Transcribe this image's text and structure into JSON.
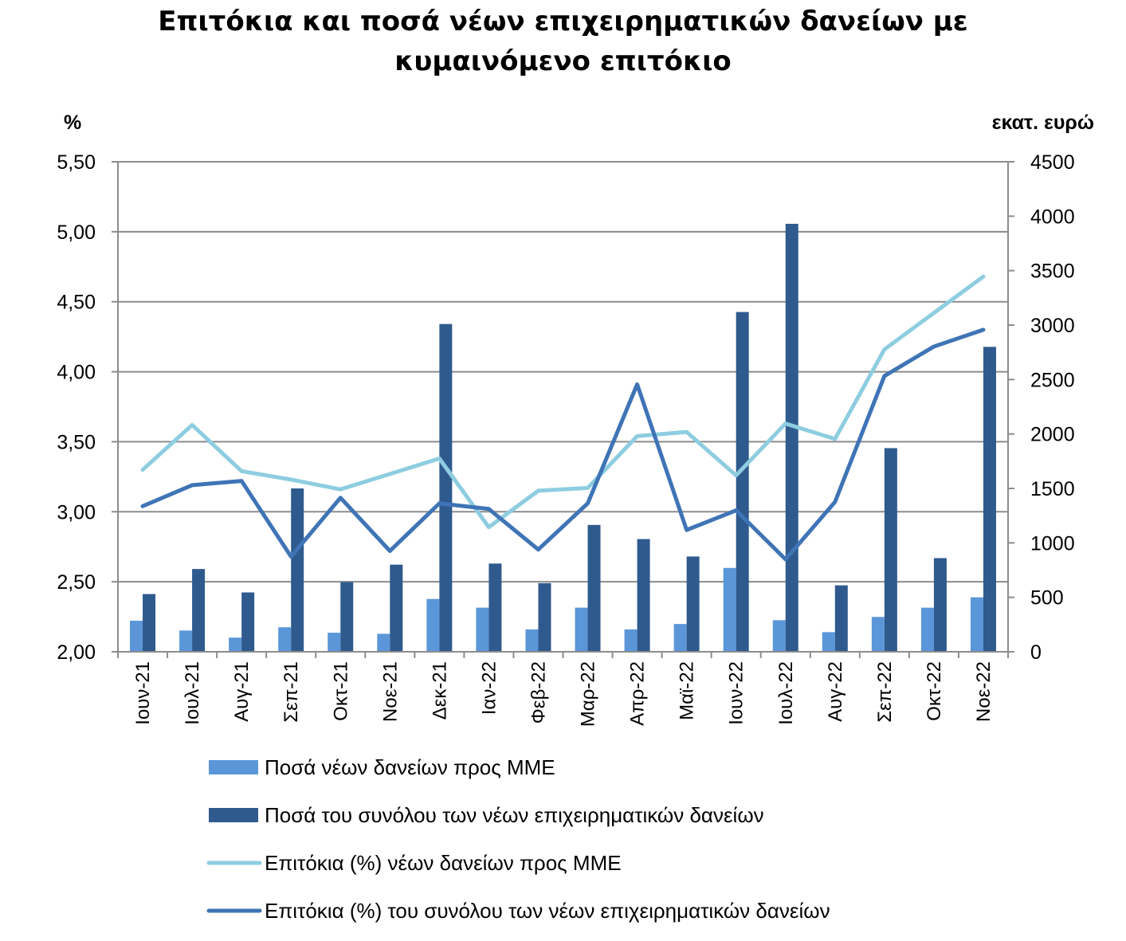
{
  "chart_data": {
    "type": "bar",
    "title": "Επιτόκια και ποσά νέων επιχειρηματικών δανείων με\nκυμαινόμενο επιτόκιο",
    "left_unit_label": "%",
    "right_unit_label": "εκατ. ευρώ",
    "categories": [
      "Ιουν-21",
      "Ιουλ-21",
      "Αυγ-21",
      "Σεπ-21",
      "Οκτ-21",
      "Νοε-21",
      "Δεκ-21",
      "Ιαν-22",
      "Φεβ-22",
      "Μαρ-22",
      "Απρ-22",
      "Μαϊ-22",
      "Ιουν-22",
      "Ιουλ-22",
      "Αυγ-22",
      "Σεπ-22",
      "Οκτ-22",
      "Νοε-22"
    ],
    "left_axis": {
      "min": 2.0,
      "max": 5.5,
      "step": 0.5,
      "ticks": [
        "2,00",
        "2,50",
        "3,00",
        "3,50",
        "4,00",
        "4,50",
        "5,00",
        "5,50"
      ]
    },
    "right_axis": {
      "min": 0,
      "max": 4500,
      "step": 500,
      "ticks": [
        "0",
        "500",
        "1000",
        "1500",
        "2000",
        "2500",
        "3000",
        "3500",
        "4000",
        "4500"
      ]
    },
    "grid": "horizontal",
    "legend_position": "bottom",
    "series": [
      {
        "name": "Ποσά νέων δανείων προς ΜΜΕ",
        "kind": "bar",
        "axis": "right",
        "color": "#5b96d8",
        "values": [
          285,
          195,
          130,
          225,
          175,
          165,
          485,
          405,
          205,
          405,
          205,
          255,
          770,
          290,
          180,
          320,
          405,
          500
        ]
      },
      {
        "name": "Ποσά του συνόλου των νέων επιχειρηματικών δανείων",
        "kind": "bar",
        "axis": "right",
        "color": "#2f5a8e",
        "values": [
          530,
          760,
          545,
          1500,
          640,
          800,
          3010,
          810,
          630,
          1165,
          1035,
          875,
          3120,
          3930,
          610,
          1870,
          860,
          2800
        ]
      },
      {
        "name": "Επιτόκια (%) νέων δανείων προς ΜΜΕ",
        "kind": "line",
        "axis": "left",
        "color": "#8ecde0",
        "values": [
          3.3,
          3.62,
          3.29,
          3.23,
          3.16,
          3.27,
          3.38,
          2.89,
          3.15,
          3.17,
          3.54,
          3.57,
          3.26,
          3.63,
          3.52,
          4.16,
          4.42,
          4.68
        ]
      },
      {
        "name": "Επιτόκια (%) του συνόλου των νέων επιχειρηματικών δανείων",
        "kind": "line",
        "axis": "left",
        "color": "#3f74b6",
        "values": [
          3.04,
          3.19,
          3.22,
          2.68,
          3.1,
          2.72,
          3.06,
          3.02,
          2.73,
          3.06,
          3.91,
          2.87,
          3.01,
          2.66,
          3.07,
          3.97,
          4.18,
          4.3
        ]
      }
    ]
  }
}
